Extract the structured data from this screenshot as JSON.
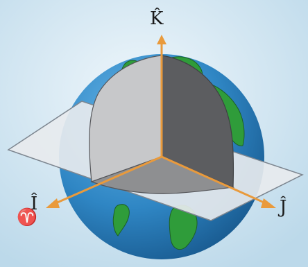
{
  "axes": {
    "k": {
      "label": "K̂"
    },
    "i": {
      "label": "Î"
    },
    "j": {
      "label": "Ĵ"
    }
  },
  "vernal_equinox_symbol": "♈",
  "colors": {
    "background": "#d7eaf4",
    "ocean": "#2f86c4",
    "land": "#2f9c3a",
    "equatorial_plane": "#e7eaee",
    "cutaway_light": "#c7c8ca",
    "cutaway_mid": "#8e8f91",
    "cutaway_dark": "#5c5d60",
    "axis": "#e99a3c"
  }
}
